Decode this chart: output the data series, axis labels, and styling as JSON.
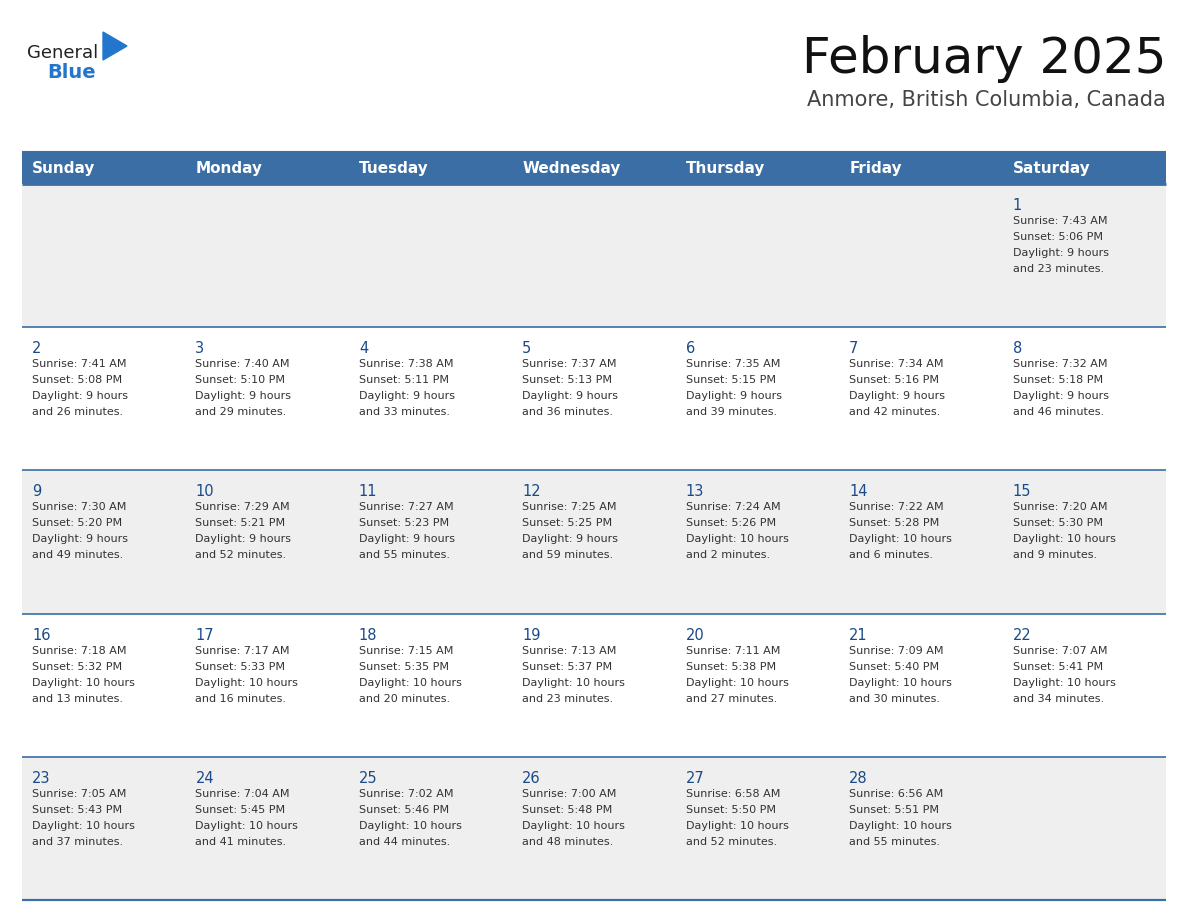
{
  "title": "February 2025",
  "subtitle": "Anmore, British Columbia, Canada",
  "days_of_week": [
    "Sunday",
    "Monday",
    "Tuesday",
    "Wednesday",
    "Thursday",
    "Friday",
    "Saturday"
  ],
  "header_bg": "#3a6ea5",
  "header_text_color": "#ffffff",
  "row_bg_odd": "#efefef",
  "row_bg_even": "#ffffff",
  "cell_text_color": "#333333",
  "day_num_color": "#1a4a8a",
  "border_color": "#3a6ea5",
  "title_color": "#111111",
  "subtitle_color": "#444444",
  "logo_general_color": "#222222",
  "logo_blue_color": "#2277cc",
  "calendar_data": [
    [
      null,
      null,
      null,
      null,
      null,
      null,
      {
        "day": 1,
        "sunrise": "7:43 AM",
        "sunset": "5:06 PM",
        "daylight": "9 hours",
        "daylight2": "and 23 minutes."
      }
    ],
    [
      {
        "day": 2,
        "sunrise": "7:41 AM",
        "sunset": "5:08 PM",
        "daylight": "9 hours",
        "daylight2": "and 26 minutes."
      },
      {
        "day": 3,
        "sunrise": "7:40 AM",
        "sunset": "5:10 PM",
        "daylight": "9 hours",
        "daylight2": "and 29 minutes."
      },
      {
        "day": 4,
        "sunrise": "7:38 AM",
        "sunset": "5:11 PM",
        "daylight": "9 hours",
        "daylight2": "and 33 minutes."
      },
      {
        "day": 5,
        "sunrise": "7:37 AM",
        "sunset": "5:13 PM",
        "daylight": "9 hours",
        "daylight2": "and 36 minutes."
      },
      {
        "day": 6,
        "sunrise": "7:35 AM",
        "sunset": "5:15 PM",
        "daylight": "9 hours",
        "daylight2": "and 39 minutes."
      },
      {
        "day": 7,
        "sunrise": "7:34 AM",
        "sunset": "5:16 PM",
        "daylight": "9 hours",
        "daylight2": "and 42 minutes."
      },
      {
        "day": 8,
        "sunrise": "7:32 AM",
        "sunset": "5:18 PM",
        "daylight": "9 hours",
        "daylight2": "and 46 minutes."
      }
    ],
    [
      {
        "day": 9,
        "sunrise": "7:30 AM",
        "sunset": "5:20 PM",
        "daylight": "9 hours",
        "daylight2": "and 49 minutes."
      },
      {
        "day": 10,
        "sunrise": "7:29 AM",
        "sunset": "5:21 PM",
        "daylight": "9 hours",
        "daylight2": "and 52 minutes."
      },
      {
        "day": 11,
        "sunrise": "7:27 AM",
        "sunset": "5:23 PM",
        "daylight": "9 hours",
        "daylight2": "and 55 minutes."
      },
      {
        "day": 12,
        "sunrise": "7:25 AM",
        "sunset": "5:25 PM",
        "daylight": "9 hours",
        "daylight2": "and 59 minutes."
      },
      {
        "day": 13,
        "sunrise": "7:24 AM",
        "sunset": "5:26 PM",
        "daylight": "10 hours",
        "daylight2": "and 2 minutes."
      },
      {
        "day": 14,
        "sunrise": "7:22 AM",
        "sunset": "5:28 PM",
        "daylight": "10 hours",
        "daylight2": "and 6 minutes."
      },
      {
        "day": 15,
        "sunrise": "7:20 AM",
        "sunset": "5:30 PM",
        "daylight": "10 hours",
        "daylight2": "and 9 minutes."
      }
    ],
    [
      {
        "day": 16,
        "sunrise": "7:18 AM",
        "sunset": "5:32 PM",
        "daylight": "10 hours",
        "daylight2": "and 13 minutes."
      },
      {
        "day": 17,
        "sunrise": "7:17 AM",
        "sunset": "5:33 PM",
        "daylight": "10 hours",
        "daylight2": "and 16 minutes."
      },
      {
        "day": 18,
        "sunrise": "7:15 AM",
        "sunset": "5:35 PM",
        "daylight": "10 hours",
        "daylight2": "and 20 minutes."
      },
      {
        "day": 19,
        "sunrise": "7:13 AM",
        "sunset": "5:37 PM",
        "daylight": "10 hours",
        "daylight2": "and 23 minutes."
      },
      {
        "day": 20,
        "sunrise": "7:11 AM",
        "sunset": "5:38 PM",
        "daylight": "10 hours",
        "daylight2": "and 27 minutes."
      },
      {
        "day": 21,
        "sunrise": "7:09 AM",
        "sunset": "5:40 PM",
        "daylight": "10 hours",
        "daylight2": "and 30 minutes."
      },
      {
        "day": 22,
        "sunrise": "7:07 AM",
        "sunset": "5:41 PM",
        "daylight": "10 hours",
        "daylight2": "and 34 minutes."
      }
    ],
    [
      {
        "day": 23,
        "sunrise": "7:05 AM",
        "sunset": "5:43 PM",
        "daylight": "10 hours",
        "daylight2": "and 37 minutes."
      },
      {
        "day": 24,
        "sunrise": "7:04 AM",
        "sunset": "5:45 PM",
        "daylight": "10 hours",
        "daylight2": "and 41 minutes."
      },
      {
        "day": 25,
        "sunrise": "7:02 AM",
        "sunset": "5:46 PM",
        "daylight": "10 hours",
        "daylight2": "and 44 minutes."
      },
      {
        "day": 26,
        "sunrise": "7:00 AM",
        "sunset": "5:48 PM",
        "daylight": "10 hours",
        "daylight2": "and 48 minutes."
      },
      {
        "day": 27,
        "sunrise": "6:58 AM",
        "sunset": "5:50 PM",
        "daylight": "10 hours",
        "daylight2": "and 52 minutes."
      },
      {
        "day": 28,
        "sunrise": "6:56 AM",
        "sunset": "5:51 PM",
        "daylight": "10 hours",
        "daylight2": "and 55 minutes."
      },
      null
    ]
  ]
}
